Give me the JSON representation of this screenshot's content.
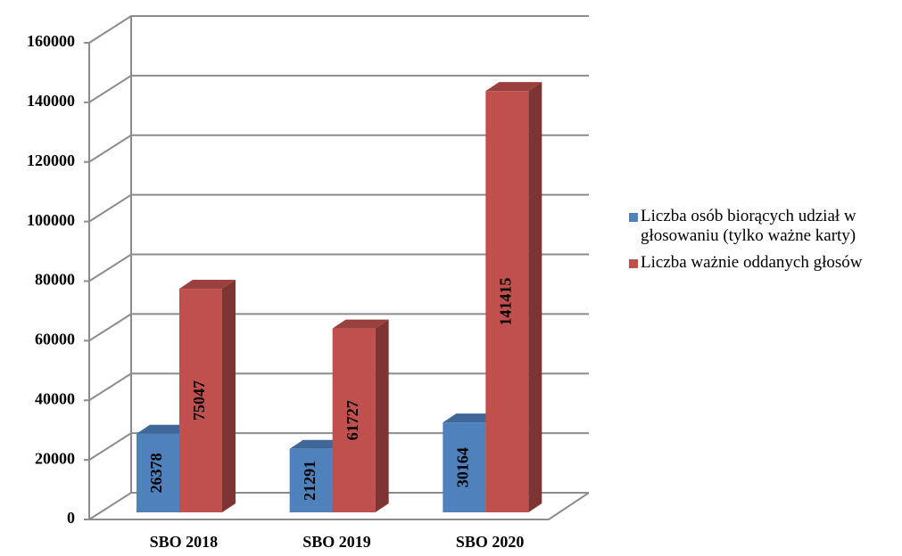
{
  "chart_data": {
    "type": "bar3d",
    "categories": [
      "SBO 2018",
      "SBO 2019",
      "SBO 2020"
    ],
    "series": [
      {
        "name": "Liczba osób biorących udział w głosowaniu (tylko ważne karty)",
        "color": "#4f81bd",
        "values": [
          26378,
          21291,
          30164
        ]
      },
      {
        "name": "Liczba  ważnie oddanych głosów",
        "color": "#c0504d",
        "values": [
          75047,
          61727,
          141415
        ]
      }
    ],
    "ylim": [
      0,
      160000
    ],
    "yticks": [
      0,
      20000,
      40000,
      60000,
      80000,
      100000,
      120000,
      140000,
      160000
    ],
    "grid": true,
    "legend": "right"
  }
}
